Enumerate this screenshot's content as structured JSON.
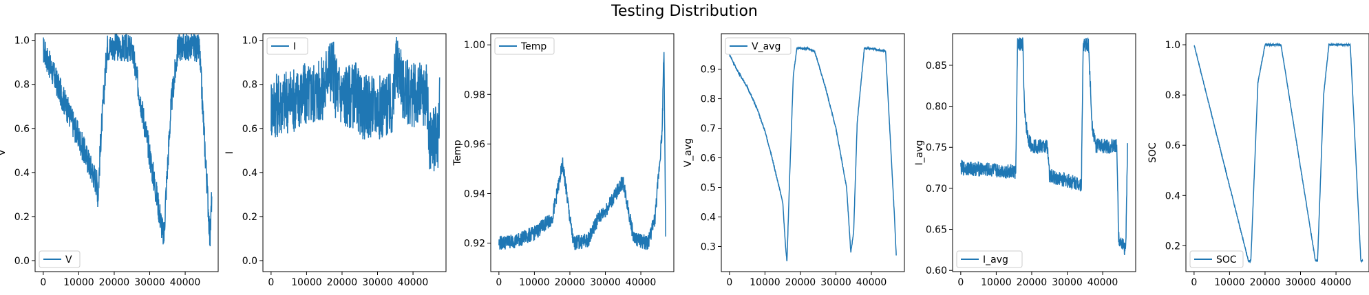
{
  "title": "Testing Distribution",
  "colors": {
    "line": "#1f77b4",
    "axis": "#000000",
    "legend_border": "#cccccc"
  },
  "chart_data": [
    {
      "type": "line",
      "ylabel": "V",
      "legend_label": "V",
      "legend_position": "lower-left",
      "xlim": [
        -2300,
        49300
      ],
      "ylim": [
        -0.05,
        1.03
      ],
      "xticks": [
        0,
        10000,
        20000,
        30000,
        40000
      ],
      "yticks": [
        0.0,
        0.2,
        0.4,
        0.6,
        0.8,
        1.0
      ],
      "ytick_decimals": 1,
      "series": [
        {
          "name": "V",
          "noise": 0.13,
          "x": [
            0,
            15200,
            15400,
            16200,
            18000,
            20000,
            24500,
            25000,
            34000,
            34500,
            36000,
            38000,
            42000,
            44000,
            47000,
            47500
          ],
          "values": [
            0.96,
            0.35,
            0.28,
            0.55,
            0.97,
            0.97,
            0.96,
            0.96,
            0.1,
            0.28,
            0.7,
            0.97,
            0.97,
            0.96,
            0.1,
            0.3
          ]
        }
      ]
    },
    {
      "type": "line",
      "ylabel": "I",
      "legend_label": "I",
      "legend_position": "upper-left",
      "xlim": [
        -2300,
        49300
      ],
      "ylim": [
        -0.05,
        1.03
      ],
      "xticks": [
        0,
        10000,
        20000,
        30000,
        40000
      ],
      "yticks": [
        0.0,
        0.2,
        0.4,
        0.6,
        0.8,
        1.0
      ],
      "ytick_decimals": 1,
      "series": [
        {
          "name": "I",
          "noise": 0.3,
          "x": [
            0,
            15300,
            15600,
            17500,
            18000,
            20000,
            24500,
            24800,
            34500,
            34800,
            36500,
            37000,
            40000,
            44000,
            44500,
            47000,
            47500
          ],
          "values": [
            0.7,
            0.78,
            0.87,
            0.87,
            0.8,
            0.75,
            0.75,
            0.7,
            0.7,
            0.87,
            0.87,
            0.78,
            0.75,
            0.75,
            0.55,
            0.55,
            0.75
          ]
        }
      ]
    },
    {
      "type": "line",
      "ylabel": "Temp",
      "legend_label": "Temp",
      "legend_position": "upper-left",
      "xlim": [
        -2300,
        49300
      ],
      "ylim": [
        0.9085,
        1.0045
      ],
      "xticks": [
        0,
        10000,
        20000,
        30000,
        40000
      ],
      "yticks": [
        0.92,
        0.94,
        0.96,
        0.98,
        1.0
      ],
      "ytick_decimals": 2,
      "series": [
        {
          "name": "Temp",
          "noise": 0.006,
          "x": [
            0,
            5000,
            10000,
            15000,
            18000,
            20000,
            21000,
            25000,
            28000,
            30000,
            33000,
            35000,
            38000,
            42000,
            44000,
            46000,
            46500,
            47000
          ],
          "values": [
            0.92,
            0.921,
            0.924,
            0.93,
            0.952,
            0.93,
            0.92,
            0.921,
            0.93,
            0.933,
            0.94,
            0.945,
            0.922,
            0.92,
            0.93,
            0.965,
            0.999,
            0.925
          ]
        }
      ]
    },
    {
      "type": "line",
      "ylabel": "V_avg",
      "legend_label": "V_avg",
      "legend_position": "upper-left",
      "xlim": [
        -2300,
        49300
      ],
      "ylim": [
        0.215,
        1.02
      ],
      "xticks": [
        0,
        10000,
        20000,
        30000,
        40000
      ],
      "yticks": [
        0.3,
        0.4,
        0.5,
        0.6,
        0.7,
        0.8,
        0.9
      ],
      "ytick_decimals": 1,
      "series": [
        {
          "name": "V_avg",
          "noise": 0.006,
          "x": [
            0,
            2000,
            5000,
            8000,
            10000,
            12000,
            15000,
            15800,
            16200,
            17000,
            18000,
            19000,
            20000,
            22000,
            24000,
            24500,
            27000,
            30000,
            33000,
            34200,
            35000,
            36000,
            38000,
            40000,
            44000,
            46500,
            47000
          ],
          "values": [
            0.95,
            0.9,
            0.84,
            0.76,
            0.69,
            0.6,
            0.45,
            0.3,
            0.25,
            0.55,
            0.88,
            0.97,
            0.97,
            0.97,
            0.96,
            0.94,
            0.84,
            0.7,
            0.5,
            0.28,
            0.35,
            0.72,
            0.97,
            0.97,
            0.96,
            0.4,
            0.27
          ]
        }
      ]
    },
    {
      "type": "line",
      "ylabel": "I_avg",
      "legend_label": "I_avg",
      "legend_position": "lower-left",
      "xlim": [
        -2300,
        49300
      ],
      "ylim": [
        0.5985,
        0.8885
      ],
      "xticks": [
        0,
        10000,
        20000,
        30000,
        40000
      ],
      "yticks": [
        0.6,
        0.65,
        0.7,
        0.75,
        0.8,
        0.85
      ],
      "ytick_decimals": 2,
      "series": [
        {
          "name": "I_avg",
          "noise": 0.018,
          "x": [
            0,
            15500,
            16000,
            17500,
            18000,
            19000,
            20000,
            23000,
            24500,
            25000,
            34000,
            34500,
            36000,
            37000,
            38000,
            44000,
            44500,
            46500,
            47000
          ],
          "values": [
            0.725,
            0.72,
            0.875,
            0.875,
            0.79,
            0.76,
            0.752,
            0.751,
            0.751,
            0.715,
            0.705,
            0.875,
            0.875,
            0.78,
            0.752,
            0.751,
            0.64,
            0.625,
            0.75
          ]
        }
      ]
    },
    {
      "type": "line",
      "ylabel": "SOC",
      "legend_label": "SOC",
      "legend_position": "lower-left",
      "xlim": [
        -2300,
        49300
      ],
      "ylim": [
        0.097,
        1.044
      ],
      "xticks": [
        0,
        10000,
        20000,
        30000,
        40000
      ],
      "yticks": [
        0.2,
        0.4,
        0.6,
        0.8,
        1.0
      ],
      "ytick_decimals": 1,
      "series": [
        {
          "name": "SOC",
          "noise": 0.006,
          "x": [
            0,
            15300,
            16000,
            18000,
            20000,
            24500,
            34200,
            34800,
            36500,
            38000,
            44000,
            44200,
            47000,
            47500
          ],
          "values": [
            1.0,
            0.14,
            0.14,
            0.85,
            1.0,
            1.0,
            0.14,
            0.14,
            0.8,
            1.0,
            1.0,
            0.95,
            0.14,
            0.14
          ]
        }
      ]
    }
  ]
}
